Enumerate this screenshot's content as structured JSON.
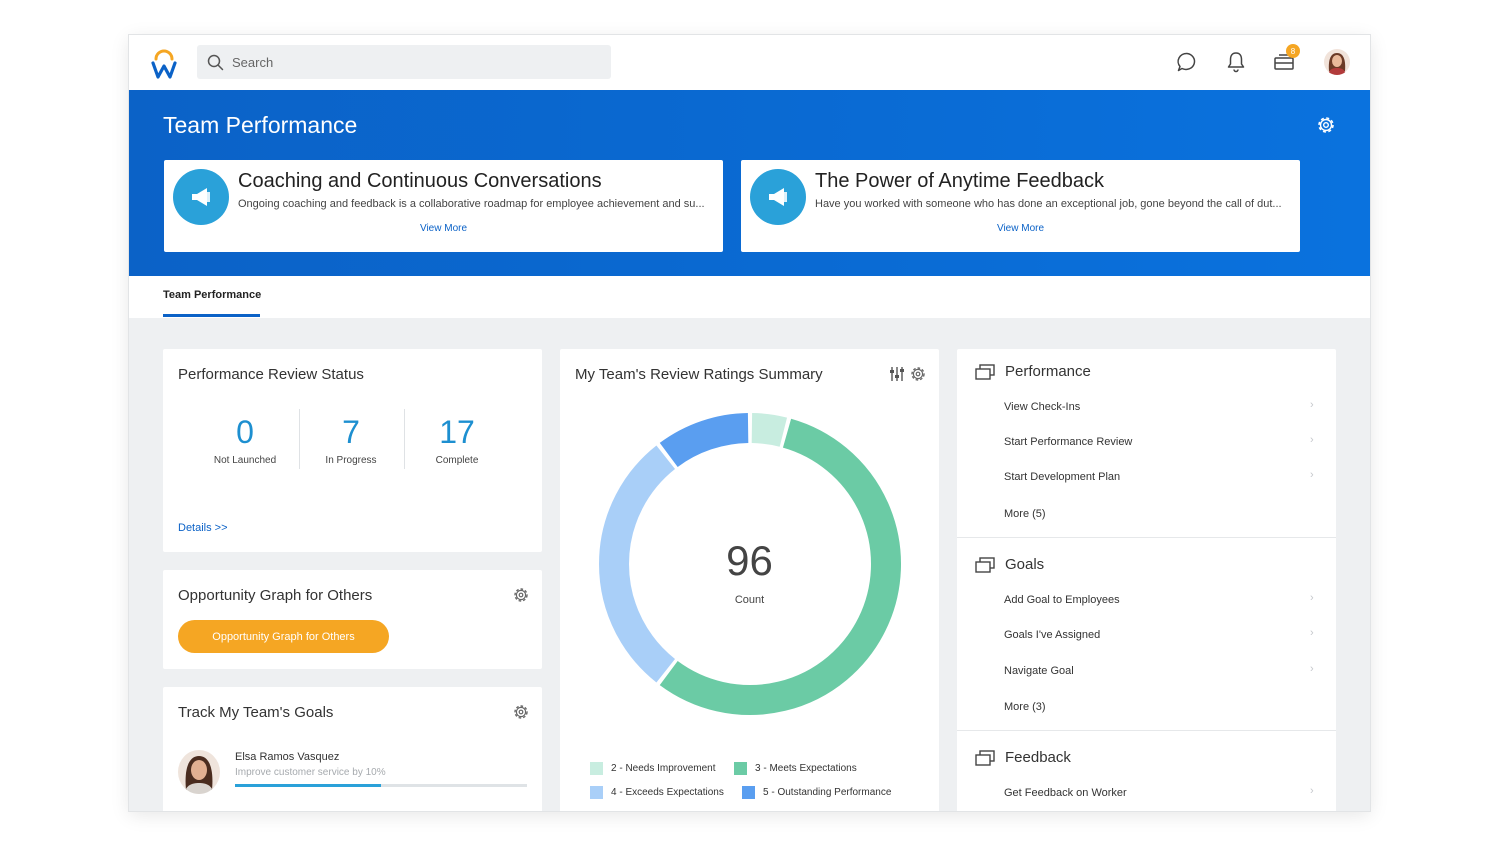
{
  "topbar": {
    "search_placeholder": "Search",
    "notification_badge": "8"
  },
  "banner": {
    "title": "Team Performance",
    "cards": [
      {
        "title": "Coaching and Continuous Conversations",
        "description": "Ongoing coaching and feedback is a collaborative roadmap for employee achievement and su...",
        "link": "View More"
      },
      {
        "title": "The Power of Anytime Feedback",
        "description": "Have you worked with someone who has done an exceptional job, gone beyond the call of dut...",
        "link": "View More"
      }
    ]
  },
  "tabs": [
    {
      "label": "Team Performance",
      "active": true
    }
  ],
  "review_status": {
    "title": "Performance Review Status",
    "stats": [
      {
        "value": "0",
        "label": "Not Launched"
      },
      {
        "value": "7",
        "label": "In Progress"
      },
      {
        "value": "17",
        "label": "Complete"
      }
    ],
    "details_link": "Details >>"
  },
  "opportunity": {
    "title": "Opportunity Graph for Others",
    "button": "Opportunity Graph for Others"
  },
  "goals_tracker": {
    "title": "Track My Team's Goals",
    "person": "Elsa Ramos Vasquez",
    "goal": "Improve customer service by 10%",
    "progress": 0.5
  },
  "ratings_summary": {
    "title": "My Team's Review Ratings Summary",
    "total": "96",
    "total_label": "Count"
  },
  "chart_data": {
    "type": "pie",
    "title": "My Team's Review Ratings Summary",
    "series": [
      {
        "name": "2 - Needs Improvement",
        "value": 4,
        "color": "#c8ede0"
      },
      {
        "name": "3 - Meets Expectations",
        "value": 54,
        "color": "#6bcba5"
      },
      {
        "name": "4 - Exceeds Expectations",
        "value": 28,
        "color": "#a9cff8"
      },
      {
        "name": "5 - Outstanding Performance",
        "value": 10,
        "color": "#5a9ef0"
      }
    ],
    "center_value": 96,
    "center_label": "Count",
    "legend_position": "bottom"
  },
  "right_panel": {
    "sections": [
      {
        "title": "Performance",
        "items": [
          "View Check-Ins",
          "Start Performance Review",
          "Start Development Plan",
          "More (5)"
        ]
      },
      {
        "title": "Goals",
        "items": [
          "Add Goal to Employees",
          "Goals I've Assigned",
          "Navigate Goal",
          "More (3)"
        ]
      },
      {
        "title": "Feedback",
        "items": [
          "Get Feedback on Worker"
        ]
      }
    ]
  },
  "colors": {
    "brand_blue": "#0b62c7",
    "accent_orange": "#f5a623",
    "stat_blue": "#1d8fd0"
  }
}
